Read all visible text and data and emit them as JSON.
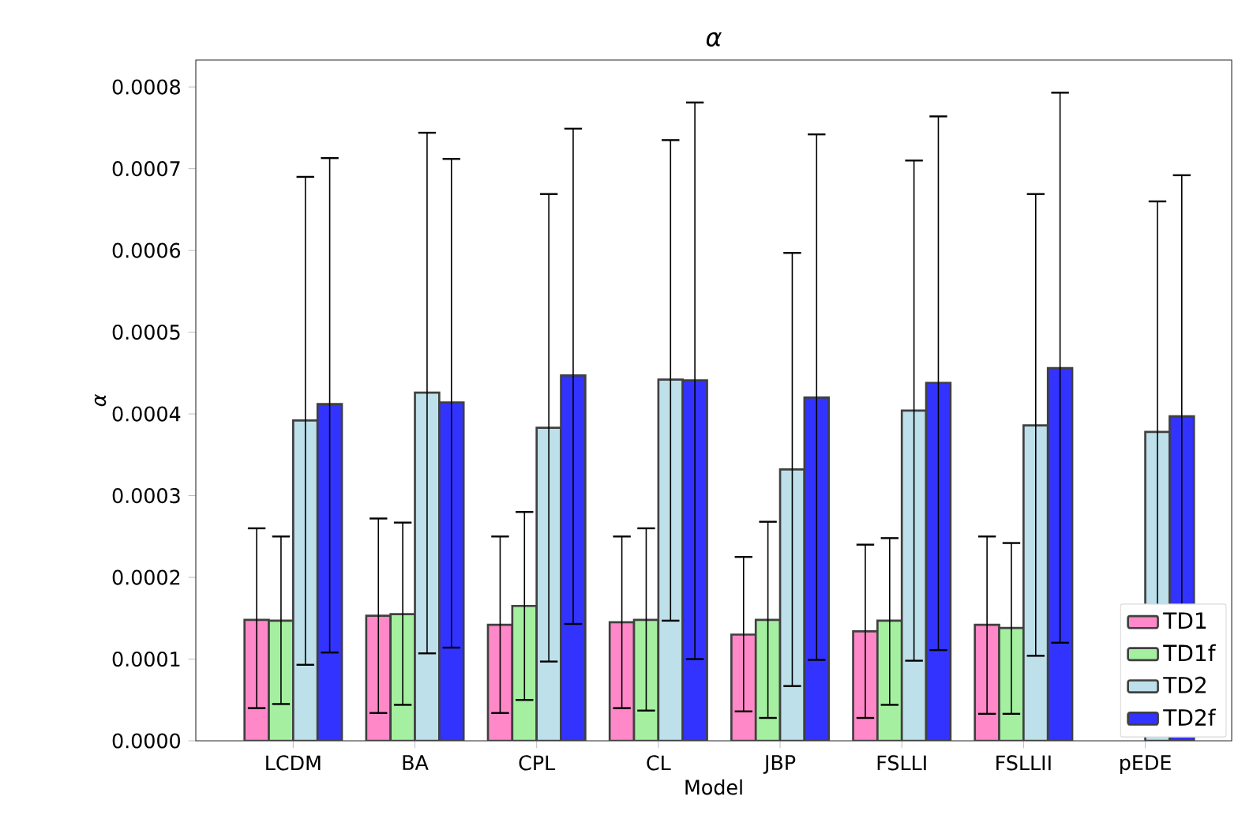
{
  "chart_data": {
    "type": "bar",
    "title": "α",
    "xlabel": "Model",
    "ylabel": "α",
    "categories": [
      "LCDM",
      "BA",
      "CPL",
      "CL",
      "JBP",
      "FSLLI",
      "FSLLII",
      "pEDE"
    ],
    "series": [
      {
        "name": "TD1",
        "color": "#ff88c8",
        "values": [
          0.000148,
          0.000153,
          0.000142,
          0.000145,
          0.00013,
          0.000134,
          0.000142,
          null
        ],
        "errors": [
          [
            4e-05,
            0.00026
          ],
          [
            3.4e-05,
            0.000272
          ],
          [
            3.4e-05,
            0.00025
          ],
          [
            4e-05,
            0.00025
          ],
          [
            3.6e-05,
            0.000225
          ],
          [
            2.8e-05,
            0.00024
          ],
          [
            3.3e-05,
            0.00025
          ],
          null
        ]
      },
      {
        "name": "TD1f",
        "color": "#a4f0a0",
        "values": [
          0.000147,
          0.000155,
          0.000165,
          0.000148,
          0.000148,
          0.000147,
          0.000138,
          null
        ],
        "errors": [
          [
            4.5e-05,
            0.00025
          ],
          [
            4.4e-05,
            0.000267
          ],
          [
            5e-05,
            0.00028
          ],
          [
            3.7e-05,
            0.00026
          ],
          [
            2.8e-05,
            0.000268
          ],
          [
            4.4e-05,
            0.000248
          ],
          [
            3.3e-05,
            0.000242
          ],
          null
        ]
      },
      {
        "name": "TD2",
        "color": "#bde0ea",
        "values": [
          0.000392,
          0.000426,
          0.000383,
          0.000442,
          0.000332,
          0.000404,
          0.000386,
          0.000378
        ],
        "errors": [
          [
            9.3e-05,
            0.00069
          ],
          [
            0.000107,
            0.000744
          ],
          [
            9.7e-05,
            0.000669
          ],
          [
            0.000147,
            0.000735
          ],
          [
            6.7e-05,
            0.000597
          ],
          [
            9.8e-05,
            0.00071
          ],
          [
            0.000104,
            0.000669
          ],
          [
            0.0001,
            0.00066
          ]
        ]
      },
      {
        "name": "TD2f",
        "color": "#3333ff",
        "values": [
          0.000412,
          0.000414,
          0.000447,
          0.000441,
          0.00042,
          0.000438,
          0.000456,
          0.000397
        ],
        "errors": [
          [
            0.000108,
            0.000713
          ],
          [
            0.000114,
            0.000712
          ],
          [
            0.000143,
            0.000749
          ],
          [
            0.0001,
            0.000781
          ],
          [
            9.9e-05,
            0.000742
          ],
          [
            0.000111,
            0.000764
          ],
          [
            0.00012,
            0.000793
          ],
          [
            0.00011,
            0.000692
          ]
        ]
      }
    ],
    "ylim": [
      0,
      0.000833
    ],
    "yticks": [
      {
        "value": 0,
        "label": "0.0000"
      },
      {
        "value": 0.0001,
        "label": "0.0001"
      },
      {
        "value": 0.0002,
        "label": "0.0002"
      },
      {
        "value": 0.0003,
        "label": "0.0003"
      },
      {
        "value": 0.0004,
        "label": "0.0004"
      },
      {
        "value": 0.0005,
        "label": "0.0005"
      },
      {
        "value": 0.0006,
        "label": "0.0006"
      },
      {
        "value": 0.0007,
        "label": "0.0007"
      },
      {
        "value": 0.0008,
        "label": "0.0008"
      }
    ],
    "legend": "bottom right",
    "grid": false
  }
}
